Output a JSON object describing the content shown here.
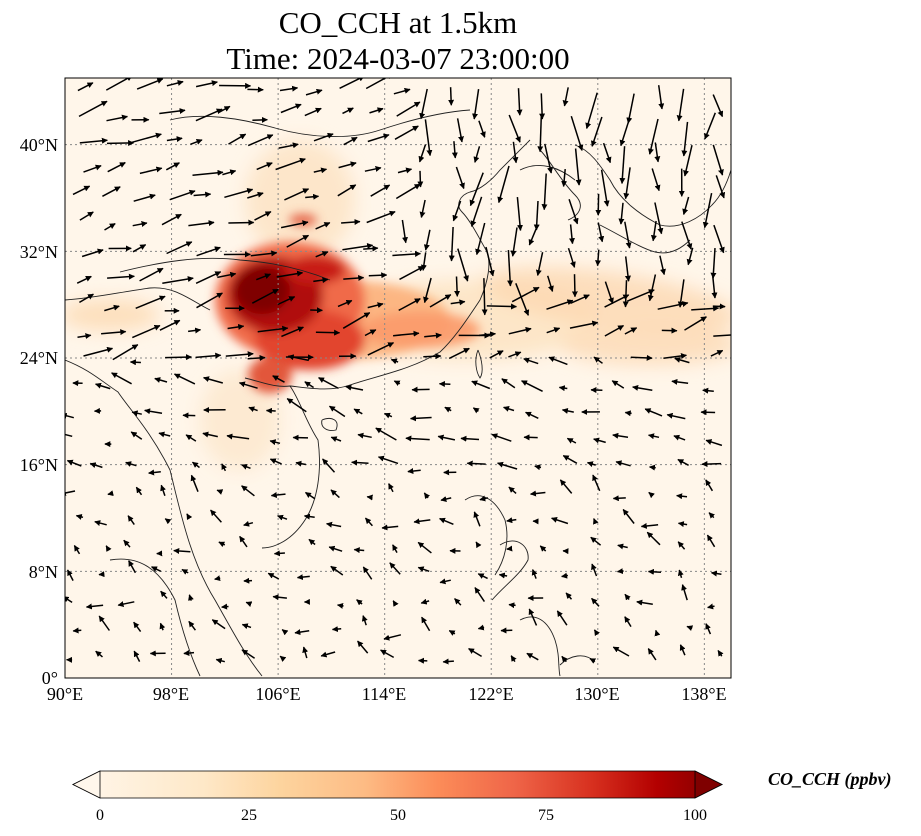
{
  "title": "CO_CCH at 1.5km",
  "subtitle": "Time: 2024-03-07 23:00:00",
  "map": {
    "lon_range": [
      90,
      140
    ],
    "lat_range": [
      0,
      45
    ],
    "lon_ticks": [
      "90°E",
      "98°E",
      "106°E",
      "114°E",
      "122°E",
      "130°E",
      "138°E"
    ],
    "lat_ticks": [
      "0°",
      "8°N",
      "16°N",
      "24°N",
      "32°N",
      "40°N"
    ],
    "gridlines": true,
    "field": "CO_CCH concentration (filled contours, OrRd-like colormap)",
    "overlay": "wind vectors (black arrows)",
    "plume_hotspot": "high concentration over southern China (~100°E–112°E, 24°N–32°N)"
  },
  "colorbar": {
    "label": "CO_CCH (ppbv)",
    "ticks": [
      "0",
      "25",
      "50",
      "75",
      "100"
    ],
    "range": [
      0,
      100
    ],
    "extend": "both",
    "colors": [
      "#fff7ec",
      "#fee8c8",
      "#fdd49e",
      "#fdbb84",
      "#fc8d59",
      "#ef6548",
      "#d7301f",
      "#b30000",
      "#7f0000"
    ]
  }
}
